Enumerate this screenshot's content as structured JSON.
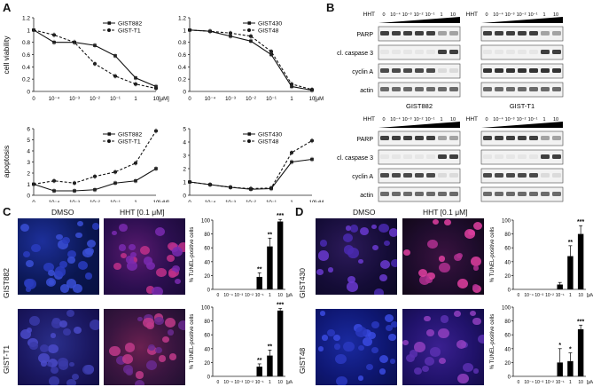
{
  "panels": {
    "A": "A",
    "B": "B",
    "C": "C",
    "D": "D"
  },
  "doses_labels": [
    "0",
    "10⁻⁴",
    "10⁻³",
    "10⁻²",
    "10⁻¹",
    "1",
    "10"
  ],
  "unit": "[μM]",
  "panelA": {
    "ylabel_top": "cell viability",
    "ylabel_bottom": "apoptosis",
    "charts": [
      {
        "id": "via1",
        "type": "line",
        "yticks": [
          "0",
          "0.2",
          "0.4",
          "0.6",
          "0.8",
          "1",
          "1.2"
        ],
        "ylim": [
          0,
          1.2
        ],
        "series": [
          {
            "name": "GIST882",
            "style": "solid",
            "values": [
              1.0,
              0.8,
              0.8,
              0.75,
              0.58,
              0.22,
              0.08
            ]
          },
          {
            "name": "GIST-T1",
            "style": "dashed",
            "values": [
              1.0,
              0.92,
              0.8,
              0.45,
              0.25,
              0.12,
              0.05
            ]
          }
        ]
      },
      {
        "id": "via2",
        "type": "line",
        "yticks": [
          "0",
          "0.2",
          "0.4",
          "0.6",
          "0.8",
          "1",
          "1.2"
        ],
        "ylim": [
          0,
          1.2
        ],
        "series": [
          {
            "name": "GIST430",
            "style": "solid",
            "values": [
              1.0,
              0.98,
              0.9,
              0.82,
              0.6,
              0.08,
              0.02
            ]
          },
          {
            "name": "GIST48",
            "style": "dashed",
            "values": [
              1.0,
              0.98,
              0.95,
              0.9,
              0.65,
              0.12,
              0.03
            ]
          }
        ]
      },
      {
        "id": "apo1",
        "type": "line",
        "yticks": [
          "0",
          "1",
          "2",
          "3",
          "4",
          "5",
          "6"
        ],
        "ylim": [
          0,
          6
        ],
        "series": [
          {
            "name": "GIST882",
            "style": "solid",
            "values": [
              1.0,
              0.4,
              0.4,
              0.5,
              1.1,
              1.3,
              2.4
            ]
          },
          {
            "name": "GIST-T1",
            "style": "dashed",
            "values": [
              1.0,
              1.3,
              1.1,
              1.7,
              2.1,
              2.9,
              5.8
            ]
          }
        ]
      },
      {
        "id": "apo2",
        "type": "line",
        "yticks": [
          "0",
          "1",
          "2",
          "3",
          "4",
          "5"
        ],
        "ylim": [
          0,
          5
        ],
        "series": [
          {
            "name": "GIST430",
            "style": "solid",
            "values": [
              1.0,
              0.8,
              0.6,
              0.45,
              0.5,
              2.5,
              2.7
            ]
          },
          {
            "name": "GIST48",
            "style": "dashed",
            "values": [
              1.0,
              0.8,
              0.6,
              0.5,
              0.55,
              3.2,
              4.1
            ]
          }
        ]
      }
    ]
  },
  "panelB": {
    "hht": "HHT",
    "doses": [
      "0",
      "10⁻⁴",
      "10⁻³",
      "10⁻²",
      "10⁻¹",
      "1",
      "10"
    ],
    "rows_top": [
      "PARP",
      "cl. caspase 3",
      "cyclin A",
      "actin"
    ],
    "rows_bottom": [
      "PARP",
      "cl. caspase 3",
      "cyclin A",
      "actin"
    ],
    "cells_top": [
      "GIST882",
      "GIST-T1"
    ],
    "cells_bottom": [
      "GIST430",
      "GIST48"
    ]
  },
  "panelC": {
    "dmso": "DMSO",
    "hht": "HHT [0.1 μM]",
    "rows": [
      "GIST882",
      "GIST-T1"
    ],
    "ylabel": "% TUNEL-positive cells",
    "charts": [
      {
        "type": "bar",
        "yticks": [
          "0",
          "20",
          "40",
          "60",
          "80",
          "100"
        ],
        "ylim": [
          0,
          100
        ],
        "values": [
          0,
          0,
          0,
          0,
          18,
          62,
          98
        ],
        "errors": [
          0,
          0,
          0,
          0,
          6,
          12,
          3
        ],
        "stars": [
          "",
          "",
          "",
          "",
          "**",
          "**",
          "***"
        ]
      },
      {
        "type": "bar",
        "yticks": [
          "0",
          "20",
          "40",
          "60",
          "80",
          "100"
        ],
        "ylim": [
          0,
          100
        ],
        "values": [
          0,
          0,
          0,
          0,
          14,
          30,
          95
        ],
        "errors": [
          0,
          0,
          0,
          0,
          4,
          8,
          3
        ],
        "stars": [
          "",
          "",
          "",
          "",
          "**",
          "**",
          "***"
        ]
      }
    ]
  },
  "panelD": {
    "dmso": "DMSO",
    "hht": "HHT [0.1 μM]",
    "rows": [
      "GIST430",
      "GIST48"
    ],
    "ylabel": "% TUNEL-positive cells",
    "charts": [
      {
        "type": "bar",
        "yticks": [
          "0",
          "20",
          "40",
          "60",
          "80",
          "100"
        ],
        "ylim": [
          0,
          100
        ],
        "values": [
          0,
          0,
          0,
          0,
          7,
          48,
          80
        ],
        "errors": [
          0,
          0,
          0,
          0,
          3,
          15,
          12
        ],
        "stars": [
          "",
          "",
          "",
          "",
          "",
          "**",
          "***"
        ]
      },
      {
        "type": "bar",
        "yticks": [
          "0",
          "20",
          "40",
          "60",
          "80",
          "100"
        ],
        "ylim": [
          0,
          100
        ],
        "values": [
          0,
          0,
          0,
          0,
          20,
          22,
          68
        ],
        "errors": [
          0,
          0,
          0,
          0,
          20,
          12,
          6
        ],
        "stars": [
          "",
          "",
          "",
          "",
          "*",
          "*",
          "***"
        ]
      }
    ]
  }
}
